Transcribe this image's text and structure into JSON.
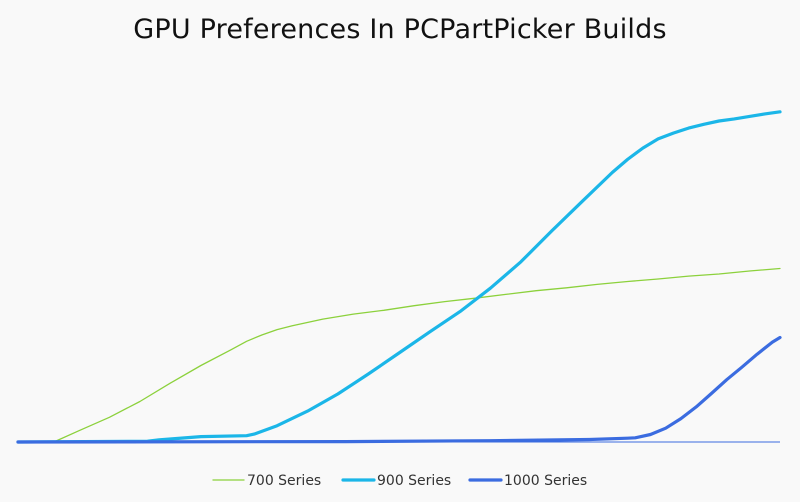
{
  "chart_data": {
    "type": "line",
    "title": "GPU Preferences In PCPartPicker Builds",
    "xlabel": "",
    "ylabel": "",
    "xlim": [
      0,
      100
    ],
    "ylim": [
      0,
      100
    ],
    "grid": false,
    "legend_position": "bottom",
    "series": [
      {
        "name": "700 Series",
        "color": "#8cd13c",
        "width": 1.3,
        "points": [
          [
            4.7,
            0
          ],
          [
            8,
            2.7
          ],
          [
            12,
            5.9
          ],
          [
            16,
            9.7
          ],
          [
            20,
            14.1
          ],
          [
            24,
            18.3
          ],
          [
            28,
            22.1
          ],
          [
            30,
            24.1
          ],
          [
            32,
            25.6
          ],
          [
            34,
            26.9
          ],
          [
            36,
            27.8
          ],
          [
            40,
            29.4
          ],
          [
            44,
            30.6
          ],
          [
            48,
            31.5
          ],
          [
            52,
            32.6
          ],
          [
            56,
            33.6
          ],
          [
            60,
            34.4
          ],
          [
            64,
            35.3
          ],
          [
            68,
            36.2
          ],
          [
            72,
            36.9
          ],
          [
            76,
            37.7
          ],
          [
            80,
            38.4
          ],
          [
            84,
            39.0
          ],
          [
            88,
            39.7
          ],
          [
            92,
            40.2
          ],
          [
            96,
            40.9
          ],
          [
            100,
            41.5
          ]
        ]
      },
      {
        "name": "900 Series",
        "color": "#1bb6e8",
        "width": 3.2,
        "points": [
          [
            0,
            0
          ],
          [
            17,
            0.2
          ],
          [
            18.5,
            0.5
          ],
          [
            24,
            1.3
          ],
          [
            30,
            1.5
          ],
          [
            31,
            1.9
          ],
          [
            34,
            3.9
          ],
          [
            38,
            7.4
          ],
          [
            42,
            11.5
          ],
          [
            46,
            16.3
          ],
          [
            50,
            21.3
          ],
          [
            54,
            26.3
          ],
          [
            58,
            31.2
          ],
          [
            62,
            36.8
          ],
          [
            66,
            43.1
          ],
          [
            70,
            50.4
          ],
          [
            74,
            57.5
          ],
          [
            78,
            64.5
          ],
          [
            80,
            67.6
          ],
          [
            82,
            70.3
          ],
          [
            84,
            72.5
          ],
          [
            86,
            73.9
          ],
          [
            88,
            75.1
          ],
          [
            90,
            76.0
          ],
          [
            92,
            76.8
          ],
          [
            94,
            77.3
          ],
          [
            96,
            77.9
          ],
          [
            98,
            78.5
          ],
          [
            100,
            79.0
          ]
        ]
      },
      {
        "name": "1000 Series",
        "color": "#3b6ce0",
        "width": 3.2,
        "points": [
          [
            0,
            0
          ],
          [
            43,
            0.1
          ],
          [
            62,
            0.3
          ],
          [
            75,
            0.6
          ],
          [
            80,
            0.9
          ],
          [
            81,
            1.0
          ],
          [
            83,
            1.8
          ],
          [
            85,
            3.3
          ],
          [
            87,
            5.6
          ],
          [
            89,
            8.4
          ],
          [
            91,
            11.6
          ],
          [
            93,
            14.9
          ],
          [
            95,
            17.9
          ],
          [
            97,
            21.0
          ],
          [
            99,
            23.9
          ],
          [
            100,
            25.0
          ]
        ]
      }
    ]
  }
}
